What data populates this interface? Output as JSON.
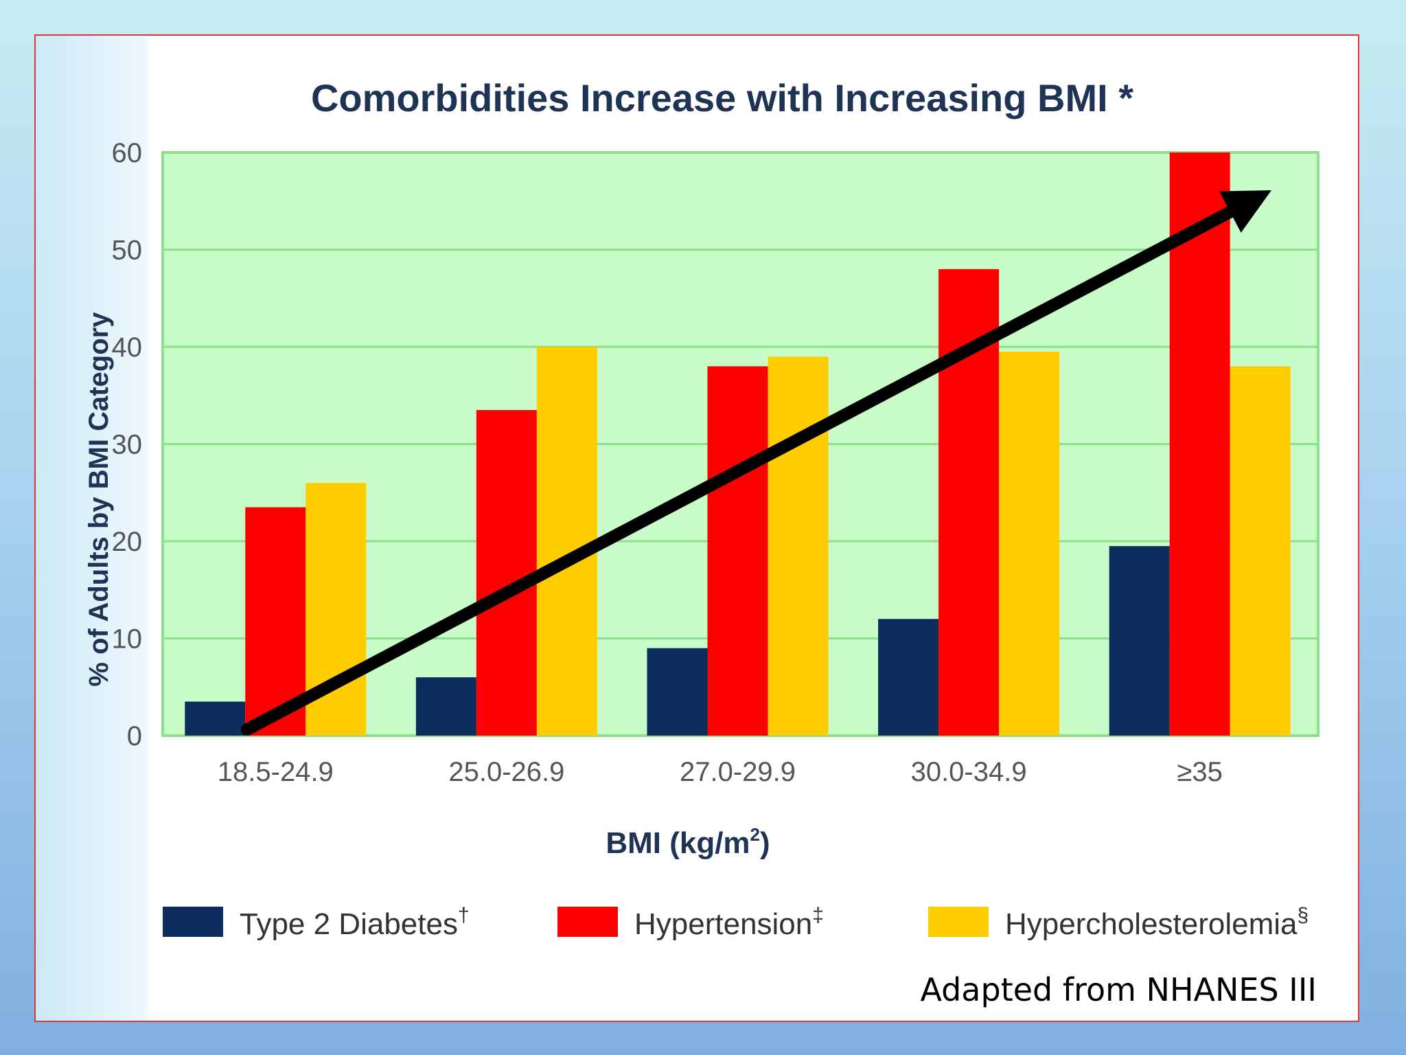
{
  "chart_data": {
    "type": "bar",
    "title": "Comorbidities Increase  with Increasing BMI *",
    "xlabel": "BMI (kg/m",
    "xlabel_superscript": "2",
    "xlabel_suffix": ")",
    "ylabel": "% of Adults by BMI Category",
    "categories": [
      "18.5-24.9",
      "25.0-26.9",
      "27.0-29.9",
      "30.0-34.9",
      "≥35"
    ],
    "ylim": [
      0,
      60
    ],
    "yticks": [
      "0",
      "10",
      "20",
      "30",
      "40",
      "50",
      "60"
    ],
    "grid": true,
    "legend_position": "bottom",
    "series": [
      {
        "name": "Type 2 Diabetes",
        "mark": "†",
        "color": "#0d2d5c",
        "values": [
          3.5,
          6,
          9,
          12,
          19.5
        ]
      },
      {
        "name": "Hypertension",
        "mark": "‡",
        "color": "#ff0000",
        "values": [
          23.5,
          33.5,
          38,
          48,
          60
        ]
      },
      {
        "name": "Hypercholesterolemia",
        "mark": "§",
        "color": "#ffcc00",
        "values": [
          26,
          40,
          39,
          39.5,
          38
        ]
      }
    ],
    "annotation": "Adapted from NHANES III"
  },
  "colors": {
    "plot_background": "#c8fcc8",
    "grid": "#8ddf8d",
    "arrow": "#000000"
  }
}
